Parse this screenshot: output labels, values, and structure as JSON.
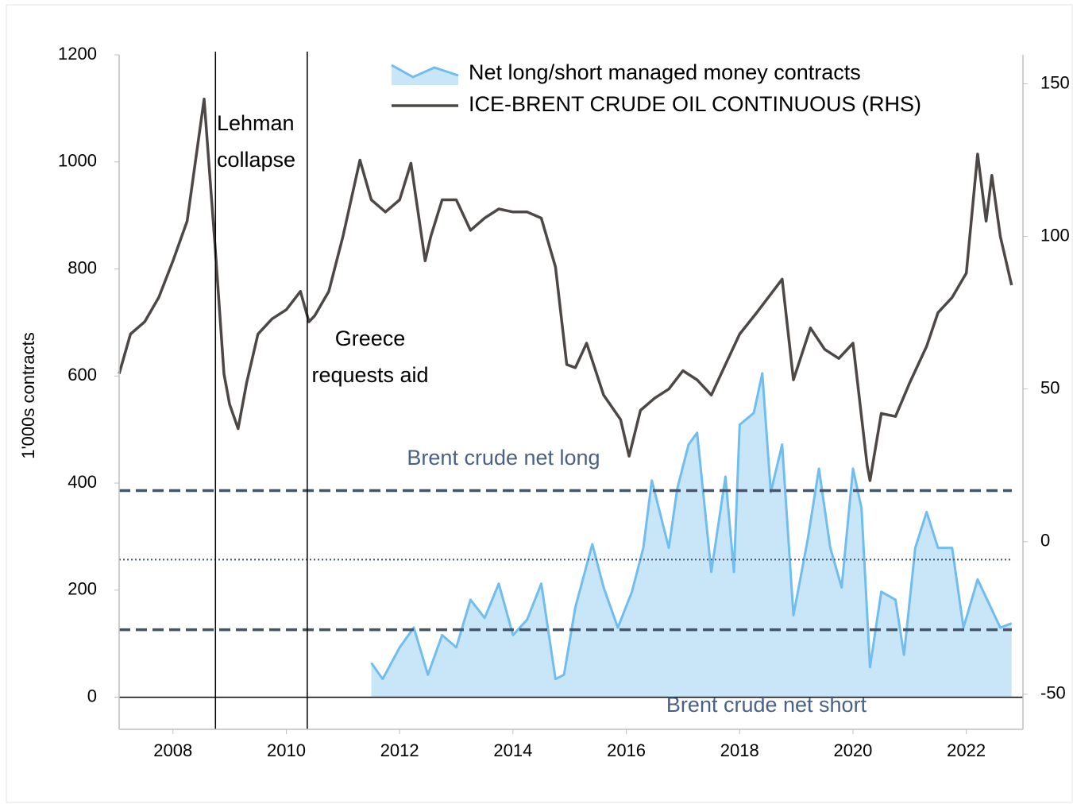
{
  "chart_data": {
    "type": "line",
    "y_label": "1'000s contracts",
    "xlim": [
      2007.05,
      2023.0
    ],
    "xticks": [
      2008,
      2010,
      2012,
      2014,
      2016,
      2018,
      2020,
      2022
    ],
    "ylim": [
      -60,
      1200
    ],
    "yticks": [
      0,
      200,
      400,
      600,
      800,
      1000,
      1200
    ],
    "y2lim": [
      -61.5,
      159.5
    ],
    "y2ticks": [
      -50,
      0,
      50,
      100,
      150
    ],
    "vlines": [
      2008.75,
      2010.37
    ],
    "hlines": [
      {
        "value": 386,
        "style": "dashed"
      },
      {
        "value": 257,
        "style": "dotted"
      },
      {
        "value": 126,
        "style": "dashed"
      }
    ],
    "annotations": [
      {
        "lines": [
          "Lehman",
          "collapse"
        ]
      },
      {
        "lines": [
          "Greece",
          "requests aid"
        ]
      },
      {
        "lines": [
          "Brent crude net long"
        ]
      },
      {
        "lines": [
          "Brent crude net short"
        ]
      }
    ],
    "series": [
      {
        "name": "Net long/short managed money contracts",
        "style": "area",
        "color": "#70bdf0",
        "fill": "#c9e6f8",
        "x": [
          2011.5,
          2011.7,
          2012.0,
          2012.25,
          2012.5,
          2012.75,
          2013.0,
          2013.25,
          2013.5,
          2013.75,
          2014.0,
          2014.25,
          2014.5,
          2014.75,
          2014.9,
          2015.1,
          2015.4,
          2015.6,
          2015.85,
          2016.1,
          2016.3,
          2016.45,
          2016.75,
          2016.9,
          2017.1,
          2017.25,
          2017.5,
          2017.75,
          2017.9,
          2018.0,
          2018.25,
          2018.4,
          2018.55,
          2018.75,
          2018.95,
          2019.2,
          2019.4,
          2019.6,
          2019.8,
          2020.0,
          2020.15,
          2020.3,
          2020.5,
          2020.75,
          2020.9,
          2021.1,
          2021.3,
          2021.5,
          2021.75,
          2021.95,
          2022.2,
          2022.4,
          2022.6,
          2022.8
        ],
        "values": [
          64,
          34,
          93,
          130,
          42,
          116,
          93,
          182,
          148,
          212,
          116,
          145,
          212,
          34,
          42,
          168,
          286,
          205,
          130,
          197,
          279,
          405,
          279,
          390,
          472,
          494,
          234,
          412,
          234,
          509,
          531,
          605,
          383,
          472,
          153,
          294,
          427,
          279,
          205,
          427,
          353,
          56,
          197,
          182,
          79,
          279,
          346,
          279,
          279,
          130,
          220,
          175,
          130,
          138
        ]
      },
      {
        "name": "ICE-BRENT CRUDE OIL CONTINUOUS (RHS)",
        "style": "line",
        "axis": "y2",
        "color": "#4d4846",
        "x": [
          2007.05,
          2007.25,
          2007.5,
          2007.75,
          2008.0,
          2008.25,
          2008.55,
          2008.75,
          2008.9,
          2009.0,
          2009.15,
          2009.3,
          2009.5,
          2009.75,
          2010.0,
          2010.25,
          2010.4,
          2010.5,
          2010.75,
          2011.0,
          2011.3,
          2011.5,
          2011.75,
          2012.0,
          2012.2,
          2012.45,
          2012.55,
          2012.75,
          2013.0,
          2013.25,
          2013.5,
          2013.75,
          2014.0,
          2014.25,
          2014.5,
          2014.75,
          2014.95,
          2015.1,
          2015.3,
          2015.6,
          2015.9,
          2016.05,
          2016.25,
          2016.5,
          2016.75,
          2017.0,
          2017.25,
          2017.5,
          2017.75,
          2018.0,
          2018.3,
          2018.75,
          2018.95,
          2019.25,
          2019.5,
          2019.75,
          2020.0,
          2020.25,
          2020.3,
          2020.5,
          2020.75,
          2021.0,
          2021.3,
          2021.5,
          2021.75,
          2022.0,
          2022.2,
          2022.35,
          2022.45,
          2022.6,
          2022.8
        ],
        "values": [
          55,
          68,
          72,
          80,
          92,
          105,
          145,
          95,
          55,
          45,
          37,
          52,
          68,
          73,
          76,
          82,
          72,
          74,
          82,
          100,
          125,
          112,
          108,
          112,
          124,
          92,
          100,
          112,
          112,
          102,
          106,
          109,
          108,
          108,
          106,
          90,
          58,
          57,
          65,
          48,
          40,
          28,
          43,
          47,
          50,
          56,
          53,
          48,
          58,
          68,
          75,
          86,
          53,
          70,
          63,
          60,
          65,
          25,
          20,
          42,
          41,
          52,
          64,
          75,
          80,
          88,
          127,
          105,
          120,
          100,
          84
        ]
      }
    ]
  }
}
